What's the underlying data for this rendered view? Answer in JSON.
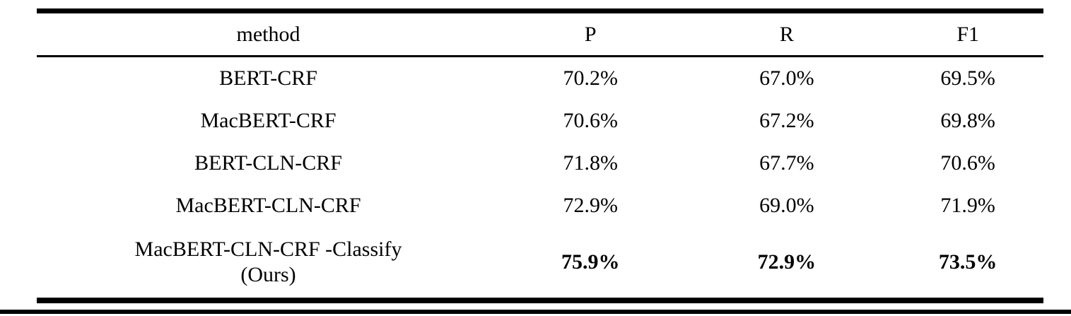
{
  "colors": {
    "text": "#000000",
    "background": "#ffffff",
    "rule": "#000000"
  },
  "table": {
    "columns": [
      "method",
      "P",
      "R",
      "F1"
    ],
    "rows": [
      {
        "method": "BERT-CRF",
        "p": "70.2%",
        "r": "67.0%",
        "f1": "69.5%"
      },
      {
        "method": "MacBERT-CRF",
        "p": "70.6%",
        "r": "67.2%",
        "f1": "69.8%"
      },
      {
        "method": "BERT-CLN-CRF",
        "p": "71.8%",
        "r": "67.7%",
        "f1": "70.6%"
      },
      {
        "method": "MacBERT-CLN-CRF",
        "p": "72.9%",
        "r": "69.0%",
        "f1": "71.9%"
      },
      {
        "method": "MacBERT-CLN-CRF -Classify",
        "method_line2": "(Ours)",
        "p": "75.9%",
        "r": "72.9%",
        "f1": "73.5%"
      }
    ]
  },
  "chart_data": {
    "type": "table",
    "title": "",
    "categories": [
      "BERT-CRF",
      "MacBERT-CRF",
      "BERT-CLN-CRF",
      "MacBERT-CLN-CRF",
      "MacBERT-CLN-CRF -Classify (Ours)"
    ],
    "series": [
      {
        "name": "P",
        "values": [
          70.2,
          70.6,
          71.8,
          72.9,
          75.9
        ]
      },
      {
        "name": "R",
        "values": [
          67.0,
          67.2,
          67.7,
          69.0,
          72.9
        ]
      },
      {
        "name": "F1",
        "values": [
          69.5,
          69.8,
          70.6,
          71.9,
          73.5
        ]
      }
    ],
    "unit": "%"
  }
}
